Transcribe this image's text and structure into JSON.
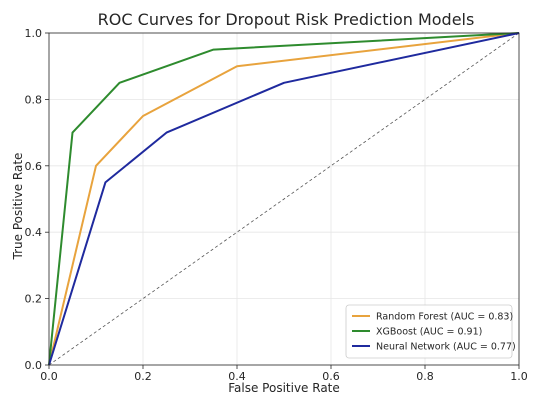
{
  "chart_data": {
    "type": "line",
    "title": "ROC Curves for Dropout Risk Prediction Models",
    "xlabel": "False Positive Rate",
    "ylabel": "True Positive Rate",
    "xlim": [
      0.0,
      1.0
    ],
    "ylim": [
      0.0,
      1.0
    ],
    "xticks": [
      0.0,
      0.2,
      0.4,
      0.6,
      0.8,
      1.0
    ],
    "yticks": [
      0.0,
      0.2,
      0.4,
      0.6,
      0.8,
      1.0
    ],
    "xtick_labels": [
      "0.0",
      "0.2",
      "0.4",
      "0.6",
      "0.8",
      "1.0"
    ],
    "ytick_labels": [
      "0.0",
      "0.2",
      "0.4",
      "0.6",
      "0.8",
      "1.0"
    ],
    "grid": true,
    "legend_position": "bottom-right",
    "series": [
      {
        "name": "Random Forest (AUC = 0.83)",
        "color": "#E8A33D",
        "x": [
          0.0,
          0.1,
          0.2,
          0.4,
          1.0
        ],
        "y": [
          0.0,
          0.6,
          0.75,
          0.9,
          1.0
        ]
      },
      {
        "name": "XGBoost (AUC = 0.91)",
        "color": "#2E8B2E",
        "x": [
          0.0,
          0.05,
          0.15,
          0.35,
          1.0
        ],
        "y": [
          0.0,
          0.7,
          0.85,
          0.95,
          1.0
        ]
      },
      {
        "name": "Neural Network (AUC = 0.77)",
        "color": "#1F2A9E",
        "x": [
          0.0,
          0.12,
          0.25,
          0.5,
          1.0
        ],
        "y": [
          0.0,
          0.55,
          0.7,
          0.85,
          1.0
        ]
      }
    ],
    "reference_line": {
      "x": [
        0.0,
        1.0
      ],
      "y": [
        0.0,
        1.0
      ],
      "style": "dashed",
      "color": "#555555"
    }
  }
}
